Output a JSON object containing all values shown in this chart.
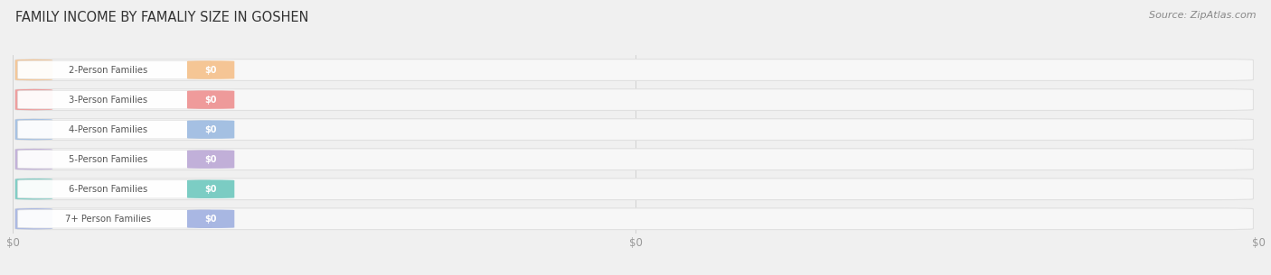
{
  "title": "FAMILY INCOME BY FAMALIY SIZE IN GOSHEN",
  "source": "Source: ZipAtlas.com",
  "categories": [
    "2-Person Families",
    "3-Person Families",
    "4-Person Families",
    "5-Person Families",
    "6-Person Families",
    "7+ Person Families"
  ],
  "values": [
    0,
    0,
    0,
    0,
    0,
    0
  ],
  "bar_colors": [
    "#F5C08A",
    "#EE9090",
    "#9BBAE0",
    "#BBA8D5",
    "#6EC8BE",
    "#A0B0E0"
  ],
  "bg_color": "#f0f0f0",
  "bar_track_color": "#f7f7f7",
  "bar_track_edge_color": "#e0e0e0",
  "xtick_labels": [
    "$0",
    "$0",
    "$0"
  ],
  "xtick_positions": [
    0.0,
    0.5,
    1.0
  ],
  "title_fontsize": 10.5,
  "source_fontsize": 8,
  "figsize": [
    14.06,
    3.05
  ],
  "dpi": 100
}
